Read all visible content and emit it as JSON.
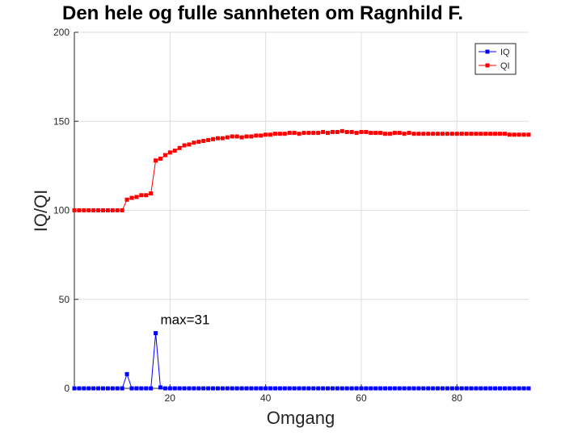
{
  "chart_data": {
    "type": "line",
    "title": "Den hele og fulle sannheten om Ragnhild F.",
    "xlabel": "Omgang",
    "ylabel": "IQ/QI",
    "xlim": [
      0,
      95
    ],
    "ylim": [
      0,
      200
    ],
    "xticks": [
      20,
      40,
      60,
      80
    ],
    "yticks": [
      0,
      50,
      100,
      150,
      200
    ],
    "grid": true,
    "legend_position": "top-right",
    "annotation": {
      "text": "max=31",
      "x": 18,
      "y": 36
    },
    "series": [
      {
        "name": "IQ",
        "color": "#0000ff",
        "marker": "square",
        "x": [
          0,
          1,
          2,
          3,
          4,
          5,
          6,
          7,
          8,
          9,
          10,
          11,
          12,
          13,
          14,
          15,
          16,
          17,
          18,
          19,
          20,
          21,
          22,
          23,
          24,
          25,
          26,
          27,
          28,
          29,
          30,
          31,
          32,
          33,
          34,
          35,
          36,
          37,
          38,
          39,
          40,
          41,
          42,
          43,
          44,
          45,
          46,
          47,
          48,
          49,
          50,
          51,
          52,
          53,
          54,
          55,
          56,
          57,
          58,
          59,
          60,
          61,
          62,
          63,
          64,
          65,
          66,
          67,
          68,
          69,
          70,
          71,
          72,
          73,
          74,
          75,
          76,
          77,
          78,
          79,
          80,
          81,
          82,
          83,
          84,
          85,
          86,
          87,
          88,
          89,
          90,
          91,
          92,
          93,
          94,
          95
        ],
        "y": [
          0,
          0,
          0,
          0,
          0,
          0,
          0,
          0,
          0,
          0,
          0,
          8,
          0,
          0,
          0,
          0,
          0,
          31,
          0.5,
          0,
          0,
          0,
          0,
          0,
          0,
          0,
          0,
          0,
          0,
          0,
          0,
          0,
          0,
          0,
          0,
          0,
          0,
          0,
          0,
          0,
          0,
          0,
          0,
          0,
          0,
          0,
          0,
          0,
          0,
          0,
          0,
          0,
          0,
          0,
          0,
          0,
          0,
          0,
          0,
          0,
          0,
          0,
          0,
          0,
          0,
          0,
          0,
          0,
          0,
          0,
          0,
          0,
          0,
          0,
          0,
          0,
          0,
          0,
          0,
          0,
          0,
          0,
          0,
          0,
          0,
          0,
          0,
          0,
          0,
          0,
          0,
          0,
          0,
          0,
          0,
          0
        ]
      },
      {
        "name": "QI",
        "color": "#ff0000",
        "marker": "square",
        "x": [
          0,
          1,
          2,
          3,
          4,
          5,
          6,
          7,
          8,
          9,
          10,
          11,
          12,
          13,
          14,
          15,
          16,
          17,
          18,
          19,
          20,
          21,
          22,
          23,
          24,
          25,
          26,
          27,
          28,
          29,
          30,
          31,
          32,
          33,
          34,
          35,
          36,
          37,
          38,
          39,
          40,
          41,
          42,
          43,
          44,
          45,
          46,
          47,
          48,
          49,
          50,
          51,
          52,
          53,
          54,
          55,
          56,
          57,
          58,
          59,
          60,
          61,
          62,
          63,
          64,
          65,
          66,
          67,
          68,
          69,
          70,
          71,
          72,
          73,
          74,
          75,
          76,
          77,
          78,
          79,
          80,
          81,
          82,
          83,
          84,
          85,
          86,
          87,
          88,
          89,
          90,
          91,
          92,
          93,
          94,
          95
        ],
        "y": [
          100,
          100,
          100,
          100,
          100,
          100,
          100,
          100,
          100,
          100,
          100,
          106,
          107,
          107.5,
          108.5,
          108.5,
          109.5,
          128,
          129,
          131,
          132.5,
          133.5,
          135,
          136.5,
          137,
          138,
          138.5,
          139,
          139.5,
          140,
          140.5,
          140.5,
          141,
          141.5,
          141.5,
          141,
          141.5,
          141.5,
          142,
          142,
          142.5,
          142.5,
          143,
          143,
          143,
          143.5,
          143.5,
          143,
          143.5,
          143.5,
          143.5,
          143.5,
          144,
          143.5,
          144,
          144,
          144.5,
          144,
          144,
          143.5,
          144,
          144,
          143.5,
          143.5,
          143.5,
          143,
          143,
          143.5,
          143.5,
          143,
          143.5,
          143,
          143,
          143,
          143,
          143,
          143,
          143,
          143,
          143,
          143,
          143,
          143,
          143,
          143,
          143,
          143,
          143,
          143,
          143,
          143,
          142.5,
          142.5,
          142.5,
          142.5,
          142.5
        ]
      }
    ]
  }
}
